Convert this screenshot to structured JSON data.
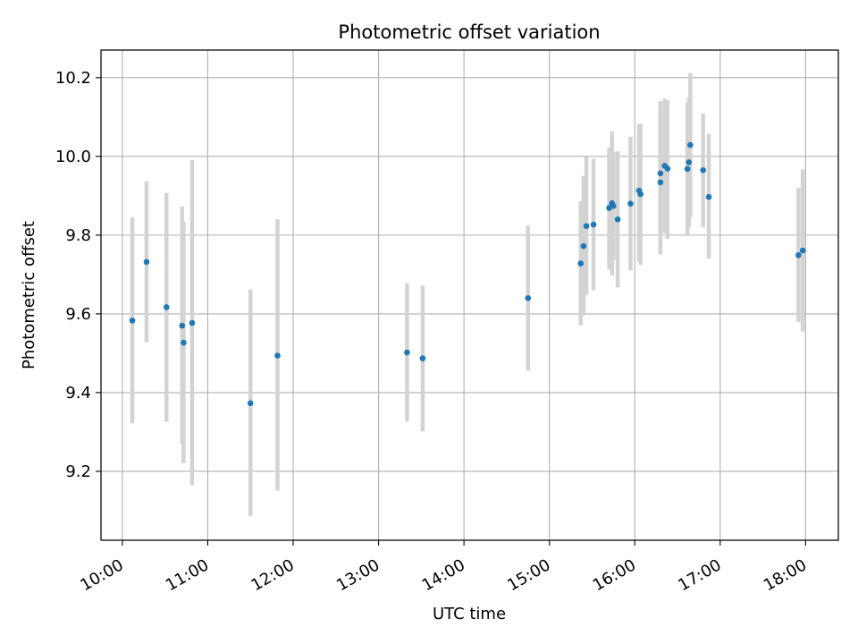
{
  "chart_data": {
    "type": "scatter",
    "title": "Photometric offset variation",
    "xlabel": "UTC time",
    "ylabel": "Photometric offset",
    "grid": true,
    "xlim": [
      "09:45",
      "18:23"
    ],
    "ylim": [
      9.025,
      10.27
    ],
    "xticks": [
      "10:00",
      "11:00",
      "12:00",
      "13:00",
      "14:00",
      "15:00",
      "16:00",
      "17:00",
      "18:00"
    ],
    "yticks": [
      "9.2",
      "9.4",
      "9.6",
      "9.8",
      "10.0",
      "10.2"
    ],
    "colors": {
      "points": "#1f77b4",
      "errorbars": "#d3d3d3",
      "grid": "#b0b0b0"
    },
    "series": [
      {
        "points": [
          {
            "x": "10:07",
            "y": 9.583,
            "ylow": 9.322,
            "yhigh": 9.845
          },
          {
            "x": "10:17",
            "y": 9.732,
            "ylow": 9.528,
            "yhigh": 9.937
          },
          {
            "x": "10:31",
            "y": 9.617,
            "ylow": 9.326,
            "yhigh": 9.907
          },
          {
            "x": "10:42",
            "y": 9.57,
            "ylow": 9.271,
            "yhigh": 9.873
          },
          {
            "x": "10:43",
            "y": 9.527,
            "ylow": 9.221,
            "yhigh": 9.834
          },
          {
            "x": "10:49",
            "y": 9.577,
            "ylow": 9.165,
            "yhigh": 9.991
          },
          {
            "x": "11:30",
            "y": 9.373,
            "ylow": 9.086,
            "yhigh": 9.662
          },
          {
            "x": "11:49",
            "y": 9.494,
            "ylow": 9.151,
            "yhigh": 9.84
          },
          {
            "x": "13:20",
            "y": 9.502,
            "ylow": 9.327,
            "yhigh": 9.678
          },
          {
            "x": "13:31",
            "y": 9.487,
            "ylow": 9.302,
            "yhigh": 9.672
          },
          {
            "x": "14:45",
            "y": 9.64,
            "ylow": 9.456,
            "yhigh": 9.824
          },
          {
            "x": "15:22",
            "y": 9.728,
            "ylow": 9.571,
            "yhigh": 9.886
          },
          {
            "x": "15:24",
            "y": 9.772,
            "ylow": 9.596,
            "yhigh": 9.95
          },
          {
            "x": "15:26",
            "y": 9.823,
            "ylow": 9.648,
            "yhigh": 9.999
          },
          {
            "x": "15:31",
            "y": 9.827,
            "ylow": 9.66,
            "yhigh": 9.994
          },
          {
            "x": "15:42",
            "y": 9.869,
            "ylow": 9.713,
            "yhigh": 10.022
          },
          {
            "x": "15:44",
            "y": 9.881,
            "ylow": 9.698,
            "yhigh": 10.063
          },
          {
            "x": "15:45",
            "y": 9.874,
            "ylow": 9.737,
            "yhigh": 10.011
          },
          {
            "x": "15:48",
            "y": 9.84,
            "ylow": 9.667,
            "yhigh": 10.013
          },
          {
            "x": "15:57",
            "y": 9.88,
            "ylow": 9.71,
            "yhigh": 10.05
          },
          {
            "x": "16:03",
            "y": 9.913,
            "ylow": 9.733,
            "yhigh": 10.082
          },
          {
            "x": "16:04",
            "y": 9.904,
            "ylow": 9.724,
            "yhigh": 10.083
          },
          {
            "x": "16:18",
            "y": 9.934,
            "ylow": 9.751,
            "yhigh": 10.117
          },
          {
            "x": "16:18",
            "y": 9.957,
            "ylow": 9.774,
            "yhigh": 10.14
          },
          {
            "x": "16:21",
            "y": 9.976,
            "ylow": 9.805,
            "yhigh": 10.147
          },
          {
            "x": "16:23",
            "y": 9.969,
            "ylow": 9.791,
            "yhigh": 10.143
          },
          {
            "x": "16:37",
            "y": 9.968,
            "ylow": 9.802,
            "yhigh": 10.136
          },
          {
            "x": "16:38",
            "y": 9.985,
            "ylow": 9.82,
            "yhigh": 10.15
          },
          {
            "x": "16:39",
            "y": 10.029,
            "ylow": 9.846,
            "yhigh": 10.212
          },
          {
            "x": "16:48",
            "y": 9.965,
            "ylow": 9.82,
            "yhigh": 10.109
          },
          {
            "x": "16:52",
            "y": 9.897,
            "ylow": 9.74,
            "yhigh": 10.057
          },
          {
            "x": "17:55",
            "y": 9.749,
            "ylow": 9.579,
            "yhigh": 9.92
          },
          {
            "x": "17:58",
            "y": 9.761,
            "ylow": 9.555,
            "yhigh": 9.967
          }
        ]
      }
    ]
  }
}
